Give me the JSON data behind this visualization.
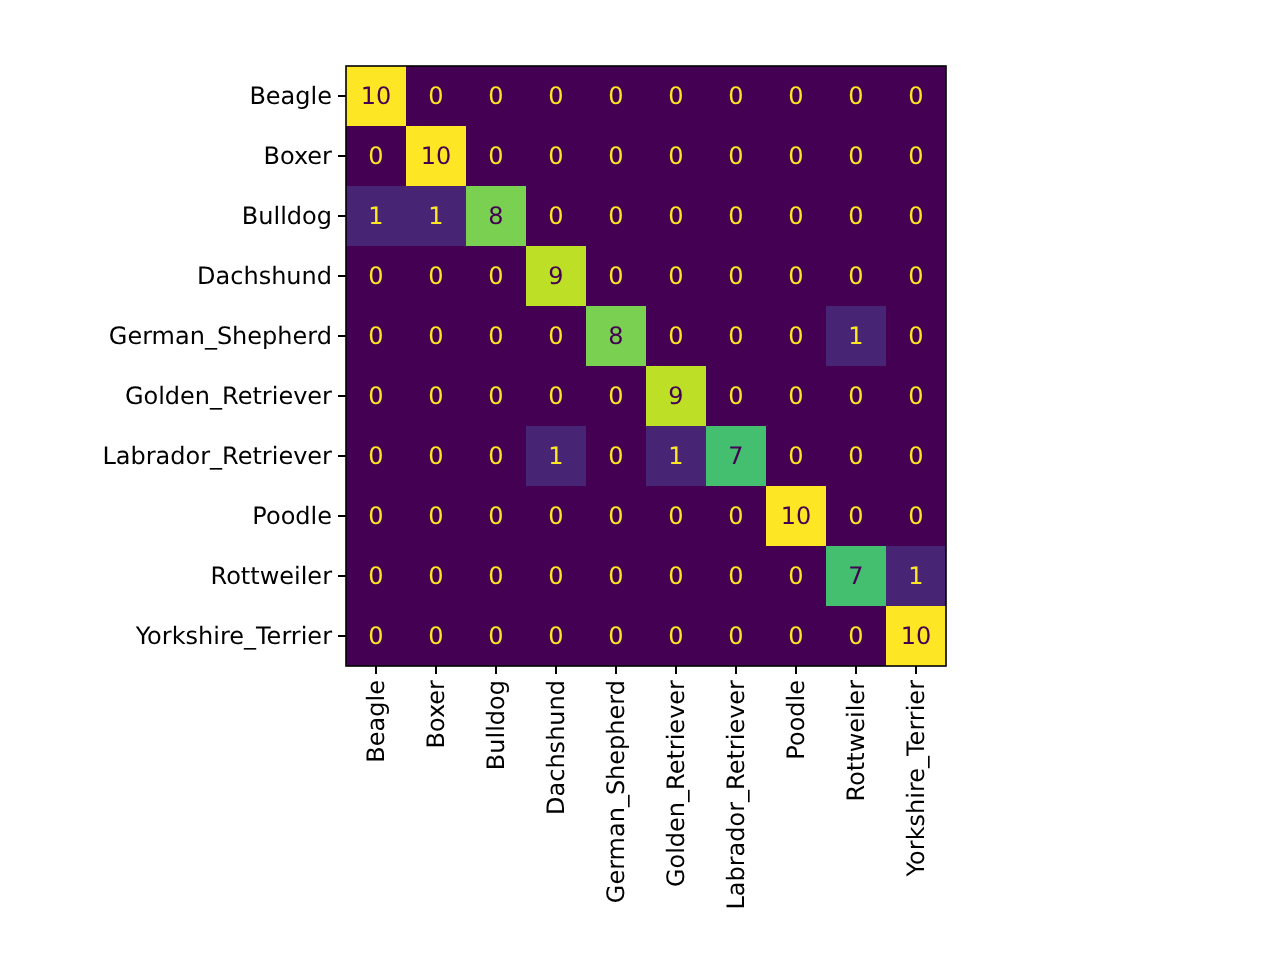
{
  "chart_data": {
    "type": "heatmap",
    "categories": [
      "Beagle",
      "Boxer",
      "Bulldog",
      "Dachshund",
      "German_Shepherd",
      "Golden_Retriever",
      "Labrador_Retriever",
      "Poodle",
      "Rottweiler",
      "Yorkshire_Terrier"
    ],
    "y_categories": [
      "Beagle",
      "Boxer",
      "Bulldog",
      "Dachshund",
      "German_Shepherd",
      "Golden_Retriever",
      "Labrador_Retriever",
      "Poodle",
      "Rottweiler",
      "Yorkshire_Terrier"
    ],
    "cells": [
      [
        10,
        0,
        0,
        0,
        0,
        0,
        0,
        0,
        0,
        0
      ],
      [
        0,
        10,
        0,
        0,
        0,
        0,
        0,
        0,
        0,
        0
      ],
      [
        1,
        1,
        8,
        0,
        0,
        0,
        0,
        0,
        0,
        0
      ],
      [
        0,
        0,
        0,
        9,
        0,
        0,
        0,
        0,
        0,
        0
      ],
      [
        0,
        0,
        0,
        0,
        8,
        0,
        0,
        0,
        1,
        0
      ],
      [
        0,
        0,
        0,
        0,
        0,
        9,
        0,
        0,
        0,
        0
      ],
      [
        0,
        0,
        0,
        1,
        0,
        1,
        7,
        0,
        0,
        0
      ],
      [
        0,
        0,
        0,
        0,
        0,
        0,
        0,
        10,
        0,
        0
      ],
      [
        0,
        0,
        0,
        0,
        0,
        0,
        0,
        0,
        7,
        1
      ],
      [
        0,
        0,
        0,
        0,
        0,
        0,
        0,
        0,
        0,
        10
      ]
    ],
    "data_labels": true
  }
}
